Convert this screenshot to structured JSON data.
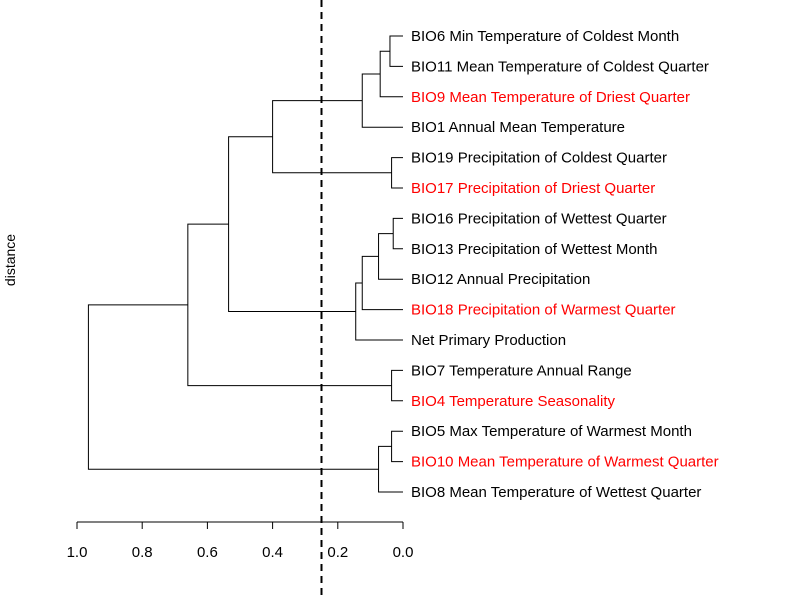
{
  "chart_data": {
    "type": "dendrogram",
    "ylabel": "distance",
    "x_ticks": [
      "1.0",
      "0.8",
      "0.6",
      "0.4",
      "0.2",
      "0.0"
    ],
    "xlim": [
      1.0,
      0.0
    ],
    "cut_height": 0.25,
    "colors": {
      "highlight": "#ff0000",
      "normal": "#000000"
    },
    "leaves": [
      {
        "label": "BIO6 Min Temperature of Coldest Month",
        "highlight": false
      },
      {
        "label": "BIO11 Mean Temperature of Coldest Quarter",
        "highlight": false
      },
      {
        "label": "BIO9 Mean Temperature of Driest Quarter",
        "highlight": true
      },
      {
        "label": "BIO1 Annual Mean Temperature",
        "highlight": false
      },
      {
        "label": "BIO19 Precipitation of Coldest Quarter",
        "highlight": false
      },
      {
        "label": "BIO17 Precipitation of Driest Quarter",
        "highlight": true
      },
      {
        "label": "BIO16 Precipitation of Wettest Quarter",
        "highlight": false
      },
      {
        "label": "BIO13 Precipitation of Wettest Month",
        "highlight": false
      },
      {
        "label": "BIO12 Annual Precipitation",
        "highlight": false
      },
      {
        "label": "BIO18 Precipitation of Warmest Quarter",
        "highlight": true
      },
      {
        "label": "Net Primary Production",
        "highlight": false
      },
      {
        "label": "BIO7 Temperature Annual Range",
        "highlight": false
      },
      {
        "label": "BIO4 Temperature Seasonality",
        "highlight": true
      },
      {
        "label": "BIO5 Max Temperature of Warmest Month",
        "highlight": false
      },
      {
        "label": "BIO10 Mean Temperature of Warmest Quarter",
        "highlight": true
      },
      {
        "label": "BIO8 Mean Temperature of Wettest Quarter",
        "highlight": false
      }
    ],
    "merges": [
      {
        "id": "m1",
        "children": [
          "L0",
          "L1"
        ],
        "height": 0.04
      },
      {
        "id": "m2",
        "children": [
          "m1",
          "L2"
        ],
        "height": 0.07
      },
      {
        "id": "m3",
        "children": [
          "m2",
          "L3"
        ],
        "height": 0.125
      },
      {
        "id": "m4",
        "children": [
          "L4",
          "L5"
        ],
        "height": 0.035
      },
      {
        "id": "m5",
        "children": [
          "m3",
          "m4"
        ],
        "height": 0.4
      },
      {
        "id": "m6",
        "children": [
          "L6",
          "L7"
        ],
        "height": 0.03
      },
      {
        "id": "m7",
        "children": [
          "m6",
          "L8"
        ],
        "height": 0.075
      },
      {
        "id": "m8",
        "children": [
          "m7",
          "L9"
        ],
        "height": 0.125
      },
      {
        "id": "m9",
        "children": [
          "m8",
          "L10"
        ],
        "height": 0.145
      },
      {
        "id": "m10",
        "children": [
          "m5",
          "m9"
        ],
        "height": 0.535
      },
      {
        "id": "m11",
        "children": [
          "L11",
          "L12"
        ],
        "height": 0.035
      },
      {
        "id": "m12",
        "children": [
          "m10",
          "m11"
        ],
        "height": 0.66
      },
      {
        "id": "m13",
        "children": [
          "L13",
          "L14"
        ],
        "height": 0.035
      },
      {
        "id": "m14",
        "children": [
          "m13",
          "L15"
        ],
        "height": 0.075
      },
      {
        "id": "m15",
        "children": [
          "m12",
          "m14"
        ],
        "height": 0.965
      }
    ]
  }
}
